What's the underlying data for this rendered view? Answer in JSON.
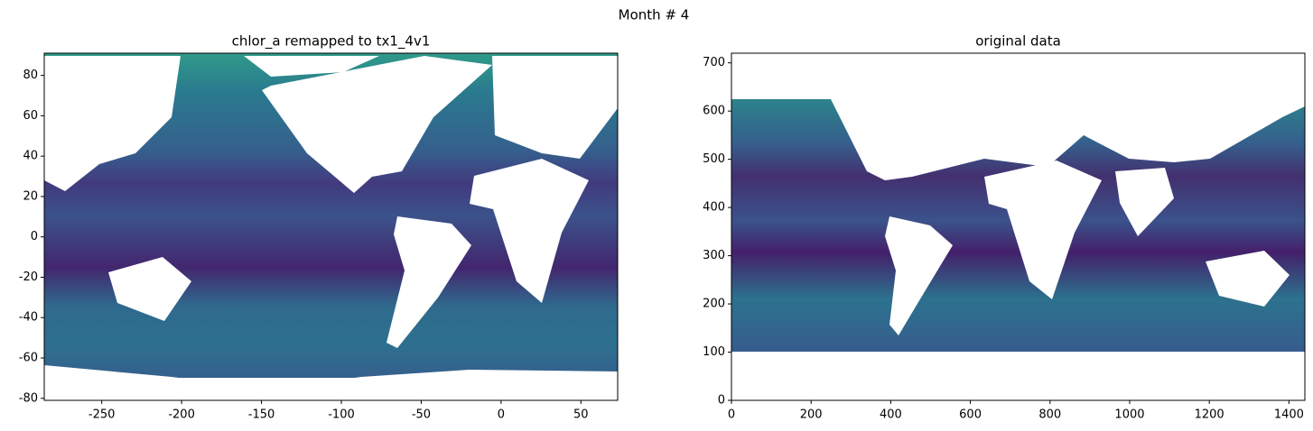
{
  "title": "Month # 4",
  "chart_data": [
    {
      "type": "heatmap",
      "title": "chlor_a remapped to tx1_4v1",
      "xlim": [
        -286,
        73
      ],
      "ylim": [
        -81,
        91
      ],
      "xticks": [
        -250,
        -200,
        -150,
        -100,
        -50,
        0,
        50
      ],
      "yticks": [
        -80,
        -60,
        -40,
        -20,
        0,
        20,
        40,
        60,
        80
      ]
    },
    {
      "type": "heatmap",
      "title": "original data",
      "xlim": [
        0,
        1440
      ],
      "ylim": [
        0,
        720
      ],
      "xticks": [
        0,
        200,
        400,
        600,
        800,
        1000,
        1200,
        1400
      ],
      "yticks": [
        0,
        100,
        200,
        300,
        400,
        500,
        600,
        700
      ]
    }
  ]
}
